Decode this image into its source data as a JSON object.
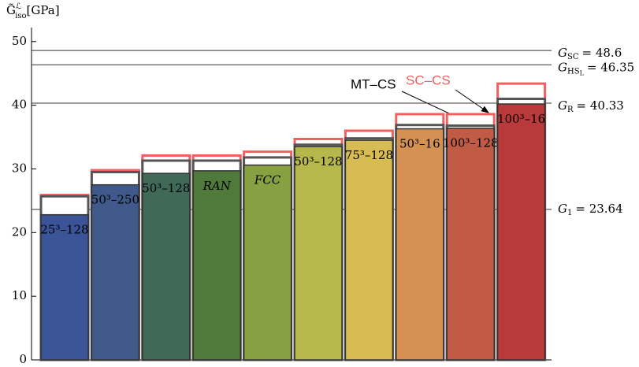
{
  "chart_data": {
    "type": "bar",
    "ylabel": {
      "symbol": "G̃",
      "sup": "ℒ",
      "sub": "iso",
      "unit": "[GPa]"
    },
    "categories": [
      "25³–128",
      "50³–250",
      "50³–128",
      "RAN",
      "FCC",
      "50³–128",
      "75³–128",
      "50³–16",
      "100³–128",
      "100³–16"
    ],
    "values": [
      22.8,
      27.5,
      29.3,
      29.7,
      30.6,
      33.5,
      34.5,
      36.3,
      36.4,
      40.2
    ],
    "colors": [
      "#3b5498",
      "#3f5a8a",
      "#3f6a5a",
      "#507a3c",
      "#86a042",
      "#b6b84c",
      "#d6bc52",
      "#d59152",
      "#c25b45",
      "#b83a3a"
    ],
    "series": [
      {
        "name": "MT–CS",
        "color": "#555555",
        "values": [
          25.7,
          29.5,
          31.3,
          31.3,
          31.8,
          33.8,
          34.8,
          36.9,
          36.8,
          41.0
        ]
      },
      {
        "name": "SC–CS",
        "color": "#f06060",
        "values": [
          25.9,
          29.8,
          32.1,
          32.1,
          32.7,
          34.7,
          36.0,
          38.6,
          38.6,
          43.4
        ]
      }
    ],
    "reference_lines": [
      {
        "value": 48.6,
        "symbol": "G",
        "sub": "SC",
        "label": "= 48.6"
      },
      {
        "value": 46.35,
        "symbol": "G",
        "sub": "HS",
        "subsub": "L",
        "label": "= 46.35"
      },
      {
        "value": 40.33,
        "symbol": "G",
        "sub": "R",
        "label": "= 40.33"
      },
      {
        "value": 23.64,
        "symbol": "G",
        "sub": "1",
        "label": "= 23.64"
      }
    ],
    "ylim": [
      0,
      52.2
    ],
    "yticks": [
      0,
      10,
      20,
      30,
      40,
      50
    ]
  }
}
